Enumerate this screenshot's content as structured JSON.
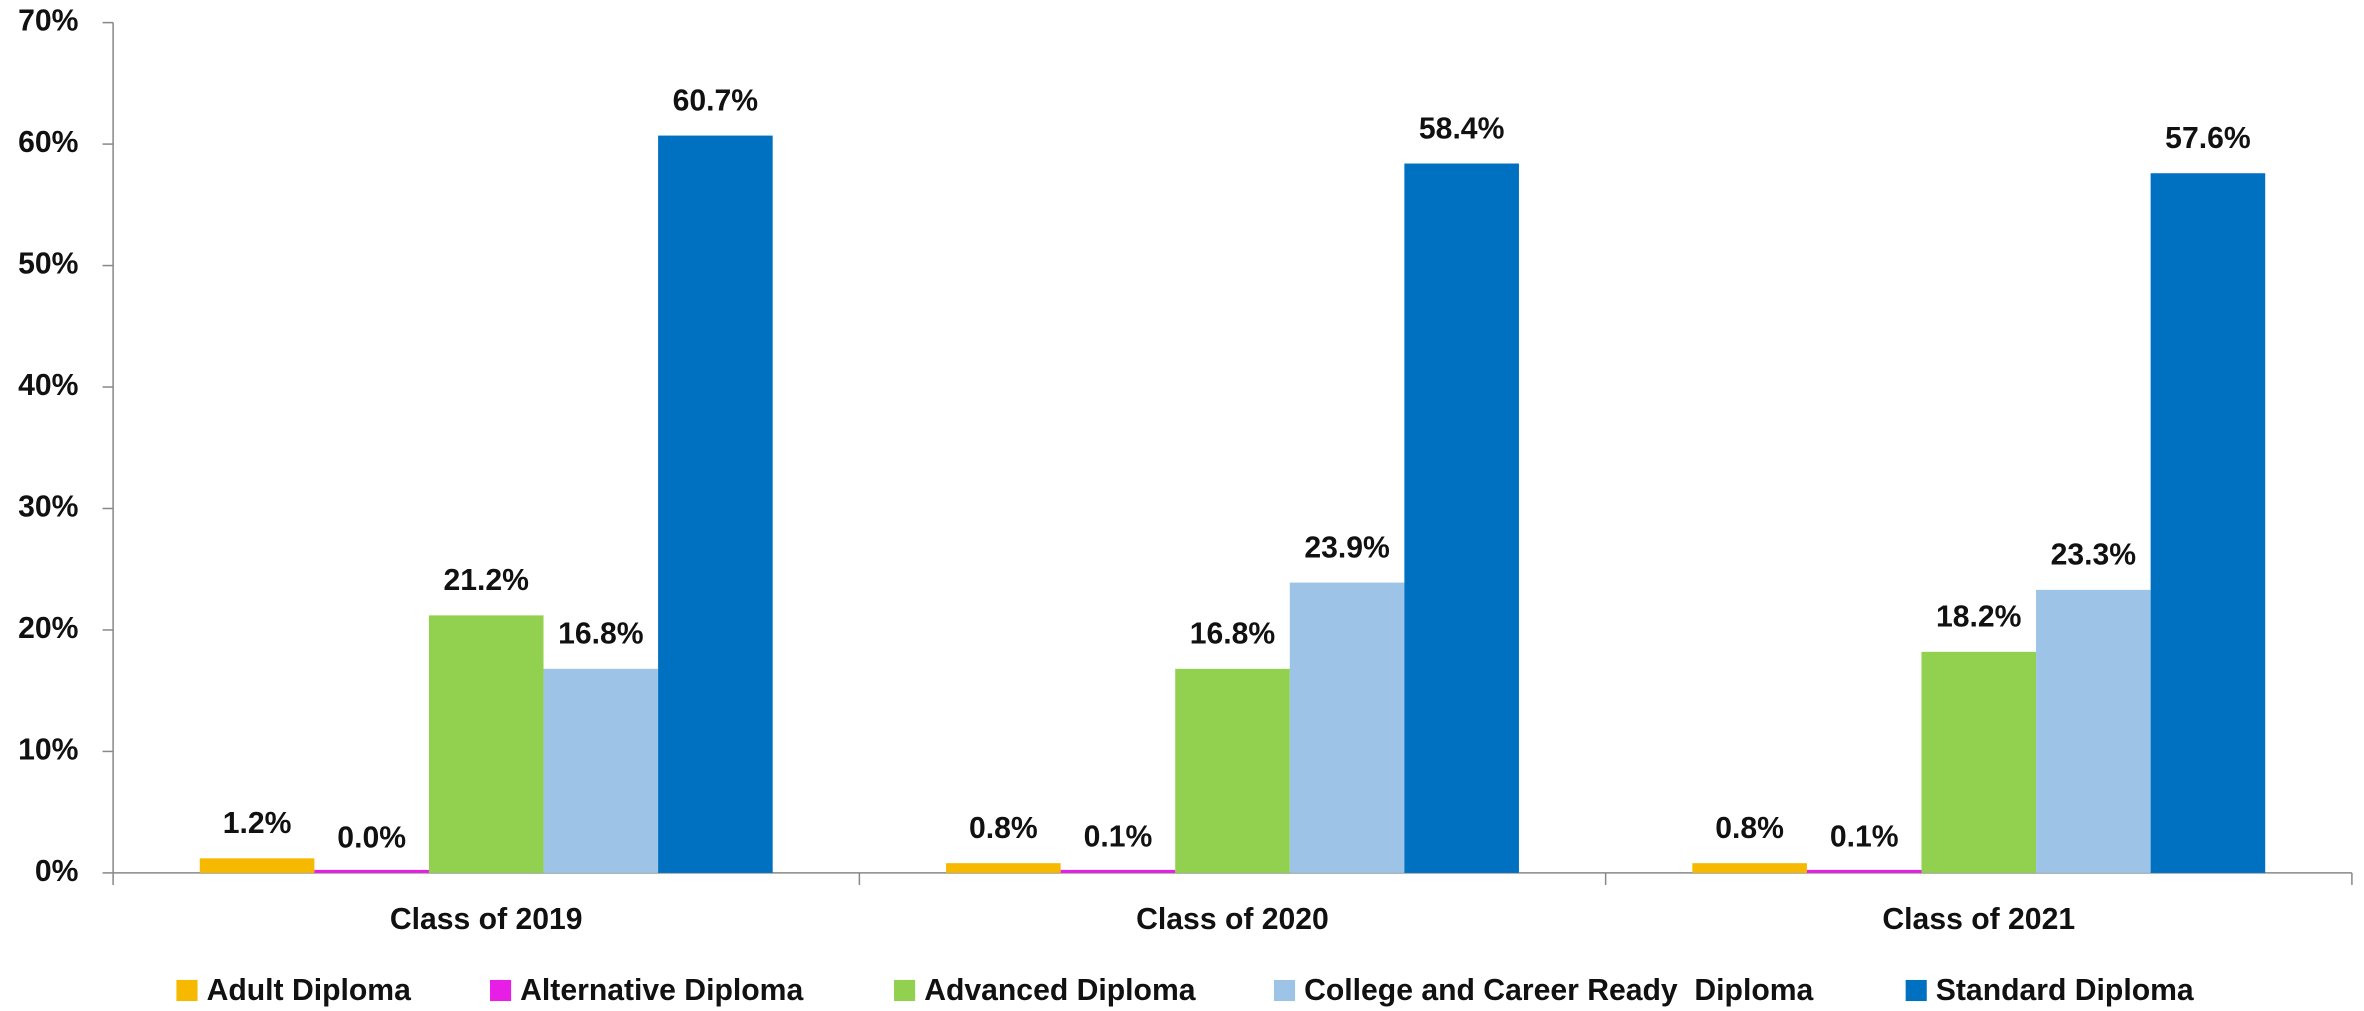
{
  "chart_data": {
    "type": "bar",
    "categories": [
      "Class of 2019",
      "Class of 2020",
      "Class of 2021"
    ],
    "series": [
      {
        "name": "Adult Diploma",
        "color": "#f7b800",
        "values": [
          1.2,
          0.8,
          0.8
        ],
        "value_labels": [
          "1.2%",
          "0.8%",
          "0.8%"
        ]
      },
      {
        "name": "Alternative Diploma",
        "color": "#e61ee6",
        "values": [
          0,
          0.1,
          0.1
        ],
        "value_labels": [
          "0.0%",
          "0.1%",
          "0.1%"
        ]
      },
      {
        "name": "Advanced Diploma",
        "color": "#92d050",
        "values": [
          21.2,
          16.8,
          18.2
        ],
        "value_labels": [
          "21.2%",
          "16.8%",
          "18.2%"
        ]
      },
      {
        "name": "College and Career Ready  Diploma",
        "color": "#9dc3e6",
        "values": [
          16.8,
          23.9,
          23.3
        ],
        "value_labels": [
          "16.8%",
          "23.9%",
          "23.3%"
        ]
      },
      {
        "name": "Standard Diploma",
        "color": "#0070c0",
        "values": [
          60.7,
          58.4,
          57.6
        ],
        "value_labels": [
          "60.7%",
          "58.4%",
          "57.6%"
        ]
      }
    ],
    "ylim": [
      0,
      70
    ],
    "yticks": [
      {
        "value": 0,
        "label": "0%"
      },
      {
        "value": 10,
        "label": "10%"
      },
      {
        "value": 20,
        "label": "20%"
      },
      {
        "value": 30,
        "label": "30%"
      },
      {
        "value": 40,
        "label": "40%"
      },
      {
        "value": 50,
        "label": "50%"
      },
      {
        "value": 60,
        "label": "60%"
      },
      {
        "value": 70,
        "label": "70%"
      }
    ],
    "legend": "bottom"
  }
}
